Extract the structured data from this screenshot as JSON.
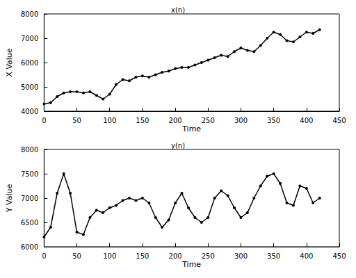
{
  "chart_data": [
    {
      "type": "line",
      "title": "x(n)",
      "x_label": "Time",
      "y_label": "X Value",
      "x": [
        0,
        10,
        20,
        30,
        40,
        50,
        60,
        70,
        80,
        90,
        100,
        110,
        120,
        130,
        140,
        150,
        160,
        170,
        180,
        190,
        200,
        210,
        220,
        230,
        240,
        250,
        260,
        270,
        280,
        290,
        300,
        310,
        320,
        330,
        340,
        350,
        360,
        370,
        380,
        390,
        400,
        410,
        420
      ],
      "values": [
        4300,
        4350,
        4600,
        4750,
        4800,
        4800,
        4750,
        4800,
        4650,
        4500,
        4700,
        5100,
        5300,
        5250,
        5400,
        5450,
        5400,
        5500,
        5600,
        5650,
        5750,
        5800,
        5800,
        5900,
        6000,
        6100,
        6200,
        6300,
        6250,
        6450,
        6600,
        6500,
        6450,
        6700,
        7000,
        7250,
        7150,
        6900,
        6850,
        7050,
        7250,
        7200,
        7350
      ],
      "color": "#000000",
      "marker": "o",
      "xlim": [
        0,
        450
      ],
      "xticks": [
        0,
        50,
        100,
        150,
        200,
        250,
        300,
        350,
        400,
        450
      ],
      "ylim": [
        4000,
        8000
      ],
      "yticks": [
        4000,
        5000,
        6000,
        7000,
        8000
      ],
      "grid": false
    },
    {
      "type": "line",
      "title": "y(n)",
      "x_label": "Time",
      "y_label": "Y Value",
      "x": [
        0,
        10,
        20,
        30,
        40,
        50,
        60,
        70,
        80,
        90,
        100,
        110,
        120,
        130,
        140,
        150,
        160,
        170,
        180,
        190,
        200,
        210,
        220,
        230,
        240,
        250,
        260,
        270,
        280,
        290,
        300,
        310,
        320,
        330,
        340,
        350,
        360,
        370,
        380,
        390,
        400,
        410,
        420
      ],
      "values": [
        6200,
        6400,
        7100,
        7500,
        7100,
        6300,
        6250,
        6600,
        6750,
        6700,
        6800,
        6850,
        6950,
        7000,
        6950,
        7000,
        6900,
        6600,
        6400,
        6550,
        6900,
        7100,
        6800,
        6600,
        6500,
        6600,
        7000,
        7150,
        7050,
        6800,
        6600,
        6700,
        7000,
        7250,
        7450,
        7500,
        7300,
        6900,
        6850,
        7250,
        7200,
        6900,
        7000
      ],
      "color": "#000000",
      "marker": "o",
      "xlim": [
        0,
        450
      ],
      "xticks": [
        0,
        50,
        100,
        150,
        200,
        250,
        300,
        350,
        400,
        450
      ],
      "ylim": [
        6000,
        8000
      ],
      "yticks": [
        6000,
        6500,
        7000,
        7500,
        8000
      ],
      "grid": false
    }
  ]
}
